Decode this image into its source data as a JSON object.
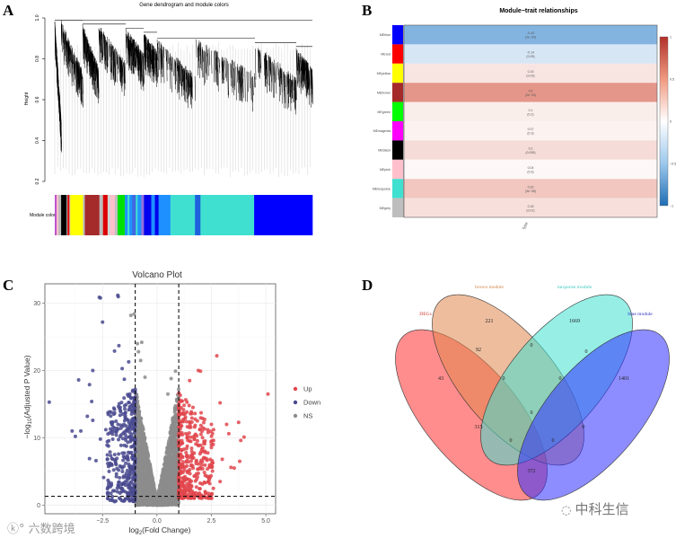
{
  "panels": {
    "a": "A",
    "b": "B",
    "c": "C",
    "d": "D"
  },
  "chart_data": [
    {
      "type": "dendrogram",
      "title": "Gene dendrogram and module colors",
      "ylabel": "Height",
      "yticks": [
        "1.0",
        "0.8",
        "0.6",
        "0.4",
        "0.2"
      ],
      "ylim": [
        0.2,
        1.0
      ],
      "colorbar_label": "Module colors",
      "module_segments": [
        [
          "#bb55cc",
          2
        ],
        [
          "#ffc0cb",
          2
        ],
        [
          "#bebebe",
          3
        ],
        [
          "#000000",
          6
        ],
        [
          "#bebebe",
          1
        ],
        [
          "#dd0000",
          2
        ],
        [
          "#bebebe",
          1
        ],
        [
          "#ffff00",
          14
        ],
        [
          "#bebebe",
          2
        ],
        [
          "#a52a2a",
          16
        ],
        [
          "#bebebe",
          4
        ],
        [
          "#dd0000",
          5
        ],
        [
          "#d3d3d3",
          3
        ],
        [
          "#ffc0cb",
          5
        ],
        [
          "#bebebe",
          3
        ],
        [
          "#00e000",
          8
        ],
        [
          "#1e90ff",
          3
        ],
        [
          "#40e0d0",
          2
        ],
        [
          "#1e90ff",
          3
        ],
        [
          "#4169e1",
          4
        ],
        [
          "#40e0d0",
          2
        ],
        [
          "#1e90ff",
          4
        ],
        [
          "#9370db",
          3
        ],
        [
          "#0000ee",
          8
        ],
        [
          "#1e90ff",
          4
        ],
        [
          "#0000ee",
          4
        ],
        [
          "#1e90ff",
          13
        ],
        [
          "#40e0d0",
          27
        ],
        [
          "#1e60dd",
          6
        ],
        [
          "#40e0d0",
          59
        ],
        [
          "#0000ff",
          64
        ]
      ]
    },
    {
      "type": "heatmap",
      "title": "Module−trait relationships",
      "trait": "type",
      "rows": [
        {
          "module": "MEblue",
          "color": "#0000ff",
          "r": -0.43,
          "p": "(2e−09)"
        },
        {
          "module": "MEred",
          "color": "#ff0000",
          "r": -0.14,
          "p": "(0.05)"
        },
        {
          "module": "MEyellow",
          "color": "#ffff00",
          "r": 0.15,
          "p": "(0.03)"
        },
        {
          "module": "MEbrown",
          "color": "#a52a2a",
          "r": 0.6,
          "p": "(2e−20)"
        },
        {
          "module": "MEgreen",
          "color": "#00ff00",
          "r": 0.1,
          "p": "(0.2)"
        },
        {
          "module": "MEmagenta",
          "color": "#ff00ff",
          "r": 0.07,
          "p": "(0.3)"
        },
        {
          "module": "MEblack",
          "color": "#000000",
          "r": 0.2,
          "p": "(0.005)"
        },
        {
          "module": "MEpink",
          "color": "#ffc0cb",
          "r": 0.04,
          "p": "(0.6)"
        },
        {
          "module": "MEturquoise",
          "color": "#40e0d0",
          "r": 0.32,
          "p": "(3e−06)"
        },
        {
          "module": "MEgrey",
          "color": "#bebebe",
          "r": 0.18,
          "p": "(0.01)"
        }
      ],
      "colorbar_ticks": [
        "1",
        "0.5",
        "0",
        "−0.5",
        "−1"
      ],
      "range": [
        -1,
        1
      ]
    },
    {
      "type": "scatter",
      "title": "Volcano Plot",
      "xlabel_main": "log",
      "xlabel_sub": "2",
      "xlabel_rest": "(Fold Change)",
      "ylabel_pre": "−log",
      "ylabel_sub": "10",
      "ylabel_rest": "(Adjusted P Value)",
      "xlim": [
        -5.15,
        5.45
      ],
      "ylim": [
        -1.3,
        32.9
      ],
      "xticks": [
        -2.5,
        0.0,
        2.5,
        5.0
      ],
      "xtick_labels": [
        "−2.5",
        "0.0",
        "2.5",
        "5.0"
      ],
      "yticks": [
        0,
        10,
        20,
        30
      ],
      "ytick_labels": [
        "0",
        "10",
        "20",
        "30"
      ],
      "fc_threshold": 1,
      "p_threshold": 1.3,
      "legend": [
        {
          "label": "Up",
          "color": "#e0474c"
        },
        {
          "label": "Down",
          "color": "#4a4a8f"
        },
        {
          "label": "NS",
          "color": "#8c8c8c"
        }
      ],
      "legend_position": "right",
      "points": {
        "Up": [
          [
            2.75,
            22.2
          ],
          [
            1.9,
            20
          ],
          [
            2.0,
            19.9
          ],
          [
            1.5,
            18.5
          ],
          [
            5.1,
            16.5
          ],
          [
            2.9,
            15.2
          ],
          [
            3.75,
            12.3
          ],
          [
            4.0,
            10.1
          ],
          [
            3.85,
            9.6
          ],
          [
            3.8,
            6.5
          ],
          [
            3.55,
            5.5
          ],
          [
            3.0,
            6.8
          ],
          [
            2.9,
            3.5
          ],
          [
            2.2,
            8
          ],
          [
            3.2,
            12
          ],
          [
            2.5,
            12
          ],
          [
            3.3,
            10.6
          ],
          [
            2.6,
            11.2
          ],
          [
            3.4,
            5.6
          ]
        ],
        "Down": [
          [
            -2.6,
            30.8
          ],
          [
            -2.65,
            30.9
          ],
          [
            -1.8,
            31.2
          ],
          [
            -1.78,
            31
          ],
          [
            -2.5,
            27.2
          ],
          [
            -1.75,
            23.7
          ],
          [
            -1.95,
            22.9
          ],
          [
            -2.95,
            20
          ],
          [
            -3.6,
            18.6
          ],
          [
            -3.1,
            17.9
          ],
          [
            -4.95,
            15.3
          ],
          [
            -3.0,
            15.4
          ],
          [
            -3.9,
            11
          ],
          [
            -3.75,
            10.2
          ],
          [
            -3.5,
            11
          ],
          [
            -2.35,
            11.2
          ],
          [
            -3.2,
            13.2
          ],
          [
            -2.95,
            12.6
          ],
          [
            -2.6,
            9.8
          ],
          [
            -3.1,
            6.9
          ],
          [
            -2.8,
            6.6
          ],
          [
            -2.45,
            4.1
          ],
          [
            -2.2,
            5
          ],
          [
            -1.6,
            20.3
          ],
          [
            -1.5,
            18.7
          ],
          [
            -1.3,
            21.3
          ]
        ],
        "NS": [
          [
            -1.2,
            28.2
          ],
          [
            -1.05,
            28.4
          ],
          [
            -0.9,
            24
          ],
          [
            -0.7,
            24.2
          ],
          [
            -0.85,
            22.8
          ],
          [
            -0.75,
            21.5
          ],
          [
            0.65,
            18.8
          ],
          [
            0.85,
            19.9
          ],
          [
            -0.55,
            19
          ],
          [
            0.5,
            16.5
          ]
        ]
      },
      "cloud_counts": {
        "Up": 420,
        "Down": 380,
        "NS": 2600
      }
    },
    {
      "type": "venn",
      "sets": [
        {
          "name": "DEGs",
          "color": "#ff3030",
          "label_color": "#d03030"
        },
        {
          "name": "brown module",
          "color": "#e0874f",
          "label_color": "#d08850"
        },
        {
          "name": "turquoise module",
          "color": "#40e0d0",
          "label_color": "#40c8c0"
        },
        {
          "name": "blue module",
          "color": "#2f2fff",
          "label_color": "#3030c0"
        }
      ],
      "regions": {
        "DEGs_only": "43",
        "brown_only": "221",
        "turquoise_only": "1669",
        "blue_only": "1401",
        "DEGs_brown": "92",
        "brown_turquoise": "0",
        "turquoise_blue": "0",
        "DEGs_brown_turquoise": "0",
        "brown_turquoise_blue": "0",
        "all_four": "0",
        "DEGs_turquoise": "315",
        "brown_blue": "0",
        "DEGs_turquoise_blue": "0",
        "DEGs_brown_blue": "0",
        "DEGs_blue": "372"
      }
    }
  ],
  "watermarks": {
    "left": "六数跨境",
    "right": "中科生信"
  }
}
